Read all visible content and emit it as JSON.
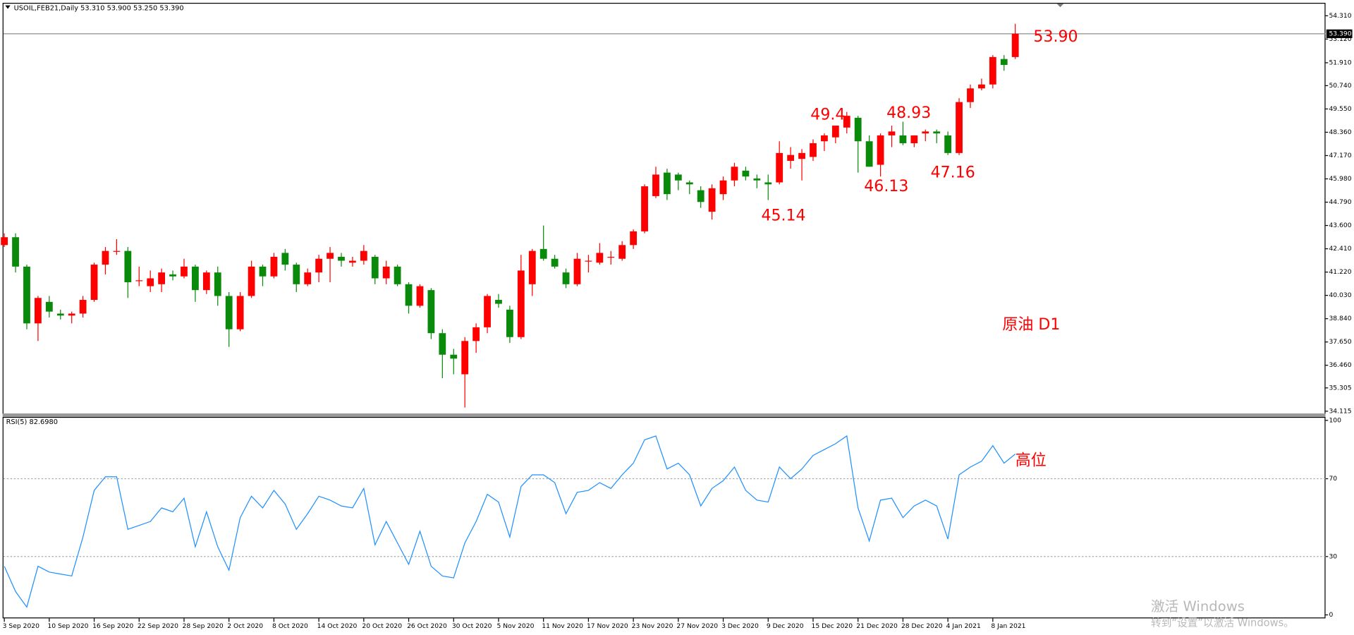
{
  "chart_data": [
    {
      "type": "candlestick",
      "title": "USOIL,FEB21,Daily  53.310 53.900 53.250 53.390",
      "up_color": "#ff0000",
      "down_color": "#0a8a0a",
      "categories": [
        "3 Sep 2020",
        null,
        null,
        null,
        "10 Sep 2020",
        null,
        null,
        null,
        "16 Sep 2020",
        null,
        null,
        null,
        "22 Sep 2020",
        null,
        null,
        null,
        "28 Sep 2020",
        null,
        null,
        null,
        "2 Oct 2020",
        null,
        null,
        null,
        "8 Oct 2020",
        null,
        null,
        null,
        "14 Oct 2020",
        null,
        null,
        null,
        "20 Oct 2020",
        null,
        null,
        null,
        "26 Oct 2020",
        null,
        null,
        null,
        "30 Oct 2020",
        null,
        null,
        null,
        "5 Nov 2020",
        null,
        null,
        null,
        "11 Nov 2020",
        null,
        null,
        null,
        "17 Nov 2020",
        null,
        null,
        null,
        "23 Nov 2020",
        null,
        null,
        null,
        "27 Nov 2020",
        null,
        null,
        null,
        "3 Dec 2020",
        null,
        null,
        null,
        "9 Dec 2020",
        null,
        null,
        null,
        "15 Dec 2020",
        null,
        null,
        null,
        "21 Dec 2020",
        null,
        null,
        null,
        "28 Dec 2020",
        null,
        null,
        null,
        "4 Jan 2021",
        null,
        null,
        null,
        "8 Jan 2021",
        null,
        null
      ],
      "open": [
        42.6,
        43.0,
        41.5,
        38.6,
        39.7,
        39.1,
        39.0,
        39.1,
        39.8,
        41.6,
        42.3,
        42.3,
        40.8,
        40.5,
        40.6,
        41.1,
        41.0,
        41.5,
        40.3,
        41.2,
        40.0,
        38.3,
        40.0,
        41.5,
        41.0,
        42.2,
        41.6,
        40.6,
        41.2,
        41.9,
        42.0,
        41.7,
        41.8,
        42.0,
        40.9,
        41.5,
        40.6,
        39.5,
        40.3,
        38.1,
        37.0,
        36.0,
        37.7,
        38.4,
        39.8,
        39.3,
        37.9,
        40.6,
        42.4,
        41.9,
        41.2,
        40.6,
        41.8,
        41.7,
        42.0,
        41.9,
        42.6,
        43.3,
        45.1,
        46.3,
        46.2,
        45.8,
        45.4,
        44.3,
        45.2,
        45.9,
        46.4,
        46.0,
        45.8,
        45.8,
        46.9,
        47.0,
        47.1,
        47.9,
        48.1,
        48.6,
        49.1,
        47.9,
        46.7,
        48.2,
        48.2,
        47.8,
        48.3,
        48.4,
        48.2,
        47.3,
        49.9,
        50.6,
        50.8,
        52.1,
        52.2
      ],
      "high": [
        43.2,
        43.2,
        41.6,
        40.0,
        40.0,
        39.3,
        39.2,
        40.0,
        41.7,
        42.5,
        42.9,
        42.5,
        41.5,
        41.3,
        41.4,
        41.3,
        41.9,
        41.6,
        41.3,
        41.5,
        40.2,
        40.2,
        41.8,
        41.6,
        42.2,
        42.4,
        41.7,
        41.4,
        42.1,
        42.5,
        42.2,
        42.0,
        42.6,
        42.1,
        41.8,
        41.6,
        40.7,
        40.6,
        40.4,
        38.3,
        37.3,
        37.9,
        38.6,
        40.1,
        40.1,
        39.5,
        42.1,
        42.4,
        43.6,
        42.1,
        41.4,
        42.2,
        42.1,
        42.7,
        42.3,
        42.8,
        43.4,
        45.7,
        46.6,
        46.5,
        46.3,
        45.9,
        45.6,
        45.7,
        46.1,
        46.8,
        46.6,
        46.2,
        46.2,
        47.9,
        47.6,
        47.5,
        48.0,
        48.3,
        48.7,
        49.4,
        49.2,
        48.2,
        48.3,
        48.7,
        48.9,
        48.2,
        48.5,
        48.5,
        48.4,
        50.1,
        50.8,
        51.1,
        52.3,
        52.3,
        53.9
      ],
      "low": [
        42.5,
        41.2,
        38.3,
        37.7,
        38.9,
        38.8,
        38.6,
        38.9,
        39.7,
        41.1,
        42.1,
        39.9,
        40.5,
        40.2,
        40.2,
        40.8,
        40.9,
        39.7,
        40.1,
        39.5,
        37.4,
        38.2,
        39.9,
        40.5,
        40.9,
        41.3,
        40.2,
        40.5,
        40.7,
        40.7,
        41.5,
        41.5,
        41.6,
        40.6,
        40.6,
        40.5,
        39.1,
        39.4,
        37.8,
        35.8,
        36.0,
        34.3,
        37.1,
        38.1,
        39.4,
        37.6,
        37.8,
        40.0,
        41.8,
        41.4,
        40.4,
        40.5,
        41.2,
        41.6,
        41.6,
        41.8,
        42.4,
        43.2,
        45.0,
        44.9,
        45.4,
        45.2,
        44.5,
        43.9,
        44.9,
        45.6,
        45.9,
        45.5,
        44.9,
        45.7,
        46.5,
        45.9,
        46.9,
        47.4,
        47.8,
        48.3,
        46.3,
        46.6,
        46.1,
        47.6,
        47.7,
        47.6,
        47.9,
        47.8,
        47.2,
        47.2,
        49.6,
        50.5,
        50.6,
        51.5,
        52.1
      ],
      "close": [
        43.0,
        41.5,
        38.6,
        39.9,
        39.2,
        39.0,
        39.1,
        39.8,
        41.6,
        42.3,
        42.3,
        40.7,
        40.8,
        40.9,
        41.2,
        41.0,
        41.5,
        40.3,
        41.2,
        40.0,
        38.3,
        40.0,
        41.5,
        41.0,
        42.0,
        41.6,
        40.6,
        41.2,
        41.9,
        42.2,
        41.8,
        41.8,
        42.3,
        40.9,
        41.5,
        40.6,
        39.5,
        40.5,
        38.1,
        37.0,
        36.8,
        37.7,
        38.4,
        40.0,
        39.6,
        37.9,
        41.3,
        42.3,
        41.9,
        41.5,
        40.6,
        41.9,
        41.8,
        42.2,
        42.0,
        42.6,
        43.3,
        45.6,
        46.2,
        45.2,
        45.9,
        45.7,
        44.8,
        45.5,
        45.9,
        46.6,
        46.1,
        45.9,
        45.7,
        47.3,
        47.2,
        47.3,
        47.8,
        48.2,
        48.7,
        49.2,
        47.9,
        46.6,
        48.2,
        48.4,
        47.8,
        48.2,
        48.4,
        48.3,
        47.3,
        49.9,
        50.6,
        50.8,
        52.2,
        51.8,
        53.39
      ],
      "ylim": [
        34.0,
        54.97
      ],
      "yticks": [
        {
          "value": 54.31,
          "label": "54.310"
        },
        {
          "value": 53.12,
          "label": "53.120"
        },
        {
          "value": 51.91,
          "label": "51.910"
        },
        {
          "value": 50.74,
          "label": "50.740"
        },
        {
          "value": 49.55,
          "label": "49.550"
        },
        {
          "value": 48.36,
          "label": "48.360"
        },
        {
          "value": 47.17,
          "label": "47.170"
        },
        {
          "value": 45.98,
          "label": "45.980"
        },
        {
          "value": 44.79,
          "label": "44.790"
        },
        {
          "value": 43.6,
          "label": "43.600"
        },
        {
          "value": 42.41,
          "label": "42.410"
        },
        {
          "value": 41.22,
          "label": "41.220"
        },
        {
          "value": 40.03,
          "label": "40.030"
        },
        {
          "value": 38.84,
          "label": "38.840"
        },
        {
          "value": 37.65,
          "label": "37.650"
        },
        {
          "value": 36.46,
          "label": "36.460"
        },
        {
          "value": 35.305,
          "label": "35.305"
        },
        {
          "value": 34.115,
          "label": "34.115"
        }
      ],
      "current_price": {
        "value": 53.39,
        "label": "53.390"
      },
      "annotations": [
        "53.90",
        "49.4",
        "48.93",
        "46.13",
        "47.16",
        "45.14",
        "原油 D1"
      ]
    },
    {
      "type": "line",
      "title": "RSI(5) 82.6980",
      "color": "#1e90ff",
      "values": [
        25,
        12,
        4,
        25,
        22,
        21,
        20,
        40,
        64,
        71,
        71,
        44,
        46,
        48,
        55,
        53,
        60,
        35,
        53,
        35,
        23,
        50,
        61,
        55,
        64,
        57,
        44,
        52,
        61,
        59,
        56,
        55,
        65,
        36,
        48,
        37,
        26,
        43,
        25,
        20,
        19,
        37,
        48,
        62,
        58,
        40,
        66,
        72,
        72,
        68,
        52,
        63,
        64,
        68,
        65,
        72,
        78,
        90,
        92,
        75,
        78,
        72,
        56,
        65,
        69,
        76,
        64,
        59,
        58,
        76,
        70,
        75,
        82,
        85,
        88,
        92,
        55,
        38,
        59,
        60,
        50,
        56,
        59,
        56,
        39,
        72,
        76,
        79,
        87,
        78,
        82.698
      ],
      "ylim": [
        0,
        100
      ],
      "yticks": [
        100,
        70,
        30,
        0
      ],
      "grid_ticks": [
        70,
        30
      ],
      "annotations": [
        "高位"
      ]
    }
  ],
  "watermark": {
    "title": "激活 Windows",
    "subtitle": "转到“设置”以激活 Windows。"
  }
}
